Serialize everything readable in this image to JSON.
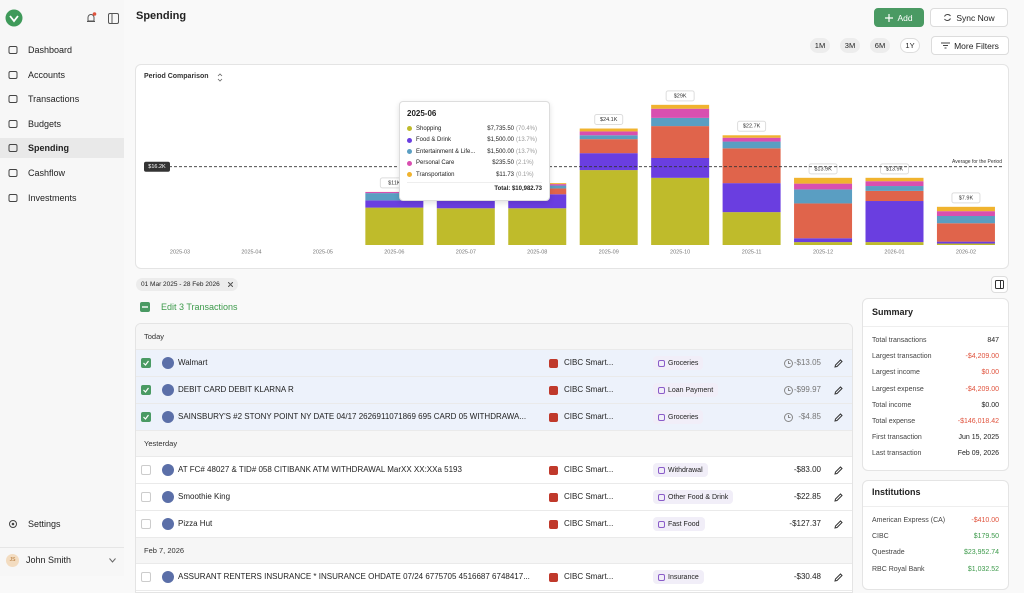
{
  "sidebar": {
    "nav": [
      {
        "label": "Dashboard"
      },
      {
        "label": "Accounts"
      },
      {
        "label": "Transactions"
      },
      {
        "label": "Budgets"
      },
      {
        "label": "Spending",
        "selected": true
      },
      {
        "label": "Cashflow"
      },
      {
        "label": "Investments"
      }
    ],
    "settings": "Settings",
    "user_initials": "JS",
    "user": "John Smith"
  },
  "header": {
    "title": "Spending",
    "add": "Add",
    "sync": "Sync Now",
    "periods": [
      {
        "label": "1M"
      },
      {
        "label": "3M"
      },
      {
        "label": "6M"
      },
      {
        "label": "1Y",
        "selected": true
      }
    ],
    "more_filters": "More Filters"
  },
  "chart_data": {
    "type": "bar",
    "stacked": true,
    "title": "Period Comparison",
    "categories": [
      "2025-03",
      "2025-04",
      "2025-05",
      "2025-06",
      "2025-07",
      "2025-08",
      "2025-09",
      "2025-10",
      "2025-11",
      "2025-12",
      "2026-01",
      "2026-02"
    ],
    "series": [
      {
        "name": "Shopping",
        "color": "#bfbb2b",
        "values": [
          0,
          0,
          0,
          7735.5,
          7600,
          7600,
          15500,
          13900,
          6800,
          600,
          600,
          300
        ]
      },
      {
        "name": "Food & Drink",
        "color": "#6a3ee0",
        "values": [
          0,
          0,
          0,
          1500,
          2600,
          2900,
          3500,
          4100,
          6000,
          800,
          8500,
          400
        ]
      },
      {
        "color": "#e0644b",
        "values": [
          0,
          0,
          0,
          0,
          0,
          1200,
          2900,
          6600,
          7200,
          7200,
          2100,
          3800
        ]
      },
      {
        "name": "Entertainment & Life...",
        "color": "#5a9ec2",
        "values": [
          0,
          0,
          0,
          1500,
          700,
          600,
          800,
          1700,
          1400,
          2900,
          1000,
          1500
        ]
      },
      {
        "name": "Personal Care",
        "color": "#d84fb0",
        "values": [
          0,
          0,
          0,
          235.5,
          300,
          300,
          800,
          1900,
          800,
          1200,
          1000,
          1000
        ]
      },
      {
        "name": "Transportation",
        "color": "#f0b32e",
        "values": [
          0,
          0,
          0,
          11.73,
          100,
          200,
          600,
          800,
          500,
          1200,
          700,
          900
        ]
      }
    ],
    "total_labels": [
      null,
      null,
      null,
      "$11K",
      null,
      null,
      "$24.1K",
      "$29K",
      "$22.7K",
      "$13.9K",
      "$13.9K",
      "$7.9K"
    ],
    "ylim": [
      0,
      30000
    ],
    "average": {
      "value": 16200,
      "label": "$16.2K",
      "text": "Average for the Period"
    },
    "tooltip": {
      "title": "2025-06",
      "rows": [
        {
          "amount": "$7,735.50",
          "share": "(70.4%)"
        },
        {
          "amount": "$1,500.00",
          "share": "(13.7%)"
        },
        {
          "amount": "$1,500.00",
          "share": "(13.7%)"
        },
        {
          "amount": "$235.50",
          "share": "(2.1%)"
        },
        {
          "amount": "$11.73",
          "share": "(0.1%)"
        }
      ],
      "total": "Total: $10,982.73"
    }
  },
  "date_chip": "01 Mar 2025 - 28 Feb 2026",
  "edit": "Edit 3 Transactions",
  "transactions": [
    {
      "label": "Today",
      "rows": [
        {
          "merchant": "Walmart",
          "account": "CIBC Smart...",
          "category": "Groceries",
          "amount": "-$13.05",
          "selected": true,
          "pending": true
        },
        {
          "merchant": "DEBIT CARD DEBIT KLARNA R",
          "account": "CIBC Smart...",
          "category": "Loan Payment",
          "amount": "-$99.97",
          "selected": true,
          "pending": true
        },
        {
          "merchant": "SAINSBURY'S #2 STONY POINT NY DATE 04/17 2626911071869 695 CARD 05 WITHDRAWA...",
          "account": "CIBC Smart...",
          "category": "Groceries",
          "amount": "-$4.85",
          "selected": true,
          "pending": true
        }
      ]
    },
    {
      "label": "Yesterday",
      "rows": [
        {
          "merchant": "AT FC# 48027 & TID# 058 CITIBANK ATM WITHDRAWAL MarXX XX:XXa 5193",
          "account": "CIBC Smart...",
          "category": "Withdrawal",
          "amount": "-$83.00"
        },
        {
          "merchant": "Smoothie King",
          "account": "CIBC Smart...",
          "category": "Other Food & Drink",
          "amount": "-$22.85"
        },
        {
          "merchant": "Pizza Hut",
          "account": "CIBC Smart...",
          "category": "Fast Food",
          "amount": "-$127.37"
        }
      ]
    },
    {
      "label": "Feb 7, 2026",
      "rows": [
        {
          "merchant": "ASSURANT RENTERS INSURANCE * INSURANCE OHDATE 07/24 6775705 4516687 6748417...",
          "account": "CIBC Smart...",
          "category": "Insurance",
          "amount": "-$30.48"
        }
      ]
    }
  ],
  "summary": {
    "title": "Summary",
    "rows": [
      {
        "label": "Total transactions",
        "value": "847",
        "color": "#222222"
      },
      {
        "label": "Largest transaction",
        "value": "-$4,209.00",
        "color": "#e0533d"
      },
      {
        "label": "Largest income",
        "value": "$0.00",
        "color": "#e0533d"
      },
      {
        "label": "Largest expense",
        "value": "-$4,209.00",
        "color": "#e0533d"
      },
      {
        "label": "Total income",
        "value": "$0.00",
        "color": "#222222"
      },
      {
        "label": "Total expense",
        "value": "-$146,018.42",
        "color": "#e0533d"
      },
      {
        "label": "First transaction",
        "value": "Jun 15, 2025",
        "color": "#222222"
      },
      {
        "label": "Last transaction",
        "value": "Feb 09, 2026",
        "color": "#222222"
      }
    ]
  },
  "institutions": {
    "title": "Institutions",
    "rows": [
      {
        "label": "American Express (CA)",
        "value": "-$410.00",
        "color": "#e0533d"
      },
      {
        "label": "CIBC",
        "value": "$179.50",
        "color": "#3d9a4b"
      },
      {
        "label": "Questrade",
        "value": "$23,952.74",
        "color": "#3d9a4b"
      },
      {
        "label": "RBC Royal Bank",
        "value": "$1,032.52",
        "color": "#3d9a4b"
      }
    ]
  }
}
